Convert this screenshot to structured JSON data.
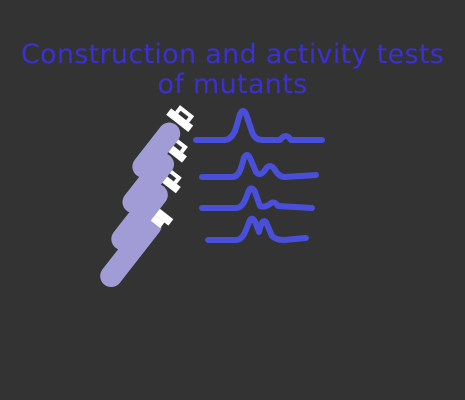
{
  "title": {
    "line1": "Construction and activity tests",
    "line2": "of mutants"
  },
  "colors": {
    "background": "#333333",
    "title": "#3b2fd6",
    "tube_liquid": "#a29cd6",
    "tube_white": "#ffffff",
    "peaks": "#4a4fd9"
  },
  "icons": {
    "tubes": "test-tubes-icon",
    "peaks": "chromatogram-peaks-icon"
  }
}
